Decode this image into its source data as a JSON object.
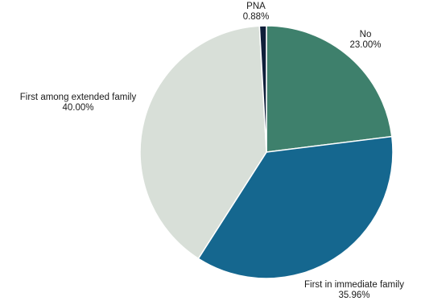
{
  "chart_data": {
    "type": "pie",
    "title": "",
    "start_angle_deg": 0,
    "direction": "clockwise",
    "slices": [
      {
        "label": "No",
        "value": 23.0,
        "value_text": "23.00%",
        "color": "#3e806c"
      },
      {
        "label": "First in immediate family",
        "value": 35.96,
        "value_text": "35.96%",
        "color": "#15678f"
      },
      {
        "label": "First among extended family",
        "value": 40.0,
        "value_text": "40.00%",
        "color": "#d8dfd8"
      },
      {
        "label": "PNA",
        "value": 0.88,
        "value_text": "0.88%",
        "color": "#0f1f3a"
      }
    ]
  }
}
